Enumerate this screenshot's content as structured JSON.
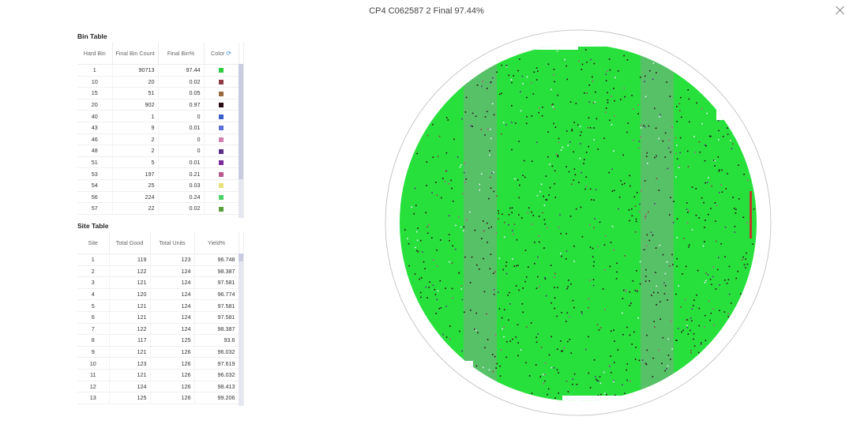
{
  "title": "CP4 C062587 2 Final 97.44%",
  "bin_table": {
    "title": "Bin Table",
    "headers": [
      "Hard Bin",
      "Final Bin Count",
      "Final Bin%",
      "Color"
    ],
    "rows": [
      {
        "bin": "1",
        "count": "90713",
        "pct": "97.44",
        "color": "#2ecc40"
      },
      {
        "bin": "10",
        "count": "20",
        "pct": "0.02",
        "color": "#8e3b46"
      },
      {
        "bin": "15",
        "count": "51",
        "pct": "0.05",
        "color": "#9b6a3e"
      },
      {
        "bin": "20",
        "count": "902",
        "pct": "0.97",
        "color": "#2a0d14"
      },
      {
        "bin": "40",
        "count": "1",
        "pct": "0",
        "color": "#3a5fcd"
      },
      {
        "bin": "43",
        "count": "9",
        "pct": "0.01",
        "color": "#5b6fd6"
      },
      {
        "bin": "46",
        "count": "2",
        "pct": "0",
        "color": "#d17fae"
      },
      {
        "bin": "48",
        "count": "2",
        "pct": "0",
        "color": "#5a2f86"
      },
      {
        "bin": "51",
        "count": "5",
        "pct": "0.01",
        "color": "#7a2a9a"
      },
      {
        "bin": "53",
        "count": "197",
        "pct": "0.21",
        "color": "#b75a8c"
      },
      {
        "bin": "54",
        "count": "25",
        "pct": "0.03",
        "color": "#e8e07a"
      },
      {
        "bin": "56",
        "count": "224",
        "pct": "0.24",
        "color": "#4fd16a"
      },
      {
        "bin": "57",
        "count": "22",
        "pct": "0.02",
        "color": "#5aa03c"
      }
    ]
  },
  "site_table": {
    "title": "Site Table",
    "headers": [
      "Site",
      "Total Good",
      "Total Units",
      "Yield%"
    ],
    "rows": [
      {
        "site": "1",
        "good": "119",
        "units": "123",
        "yield": "96.748"
      },
      {
        "site": "2",
        "good": "122",
        "units": "124",
        "yield": "98.387"
      },
      {
        "site": "3",
        "good": "121",
        "units": "124",
        "yield": "97.581"
      },
      {
        "site": "4",
        "good": "120",
        "units": "124",
        "yield": "96.774"
      },
      {
        "site": "5",
        "good": "121",
        "units": "124",
        "yield": "97.581"
      },
      {
        "site": "6",
        "good": "121",
        "units": "124",
        "yield": "97.581"
      },
      {
        "site": "7",
        "good": "122",
        "units": "124",
        "yield": "98.387"
      },
      {
        "site": "8",
        "good": "117",
        "units": "125",
        "yield": "93.6"
      },
      {
        "site": "9",
        "good": "121",
        "units": "126",
        "yield": "96.032"
      },
      {
        "site": "10",
        "good": "123",
        "units": "126",
        "yield": "97.619"
      },
      {
        "site": "11",
        "good": "121",
        "units": "126",
        "yield": "96.032"
      },
      {
        "site": "12",
        "good": "124",
        "units": "126",
        "yield": "98.413"
      },
      {
        "site": "13",
        "good": "125",
        "units": "126",
        "yield": "99.206"
      }
    ]
  },
  "wafer_map": {
    "good_color": "#27e03c",
    "stripe_color": "#7fa88a",
    "defect_colors": [
      "#2a0d14",
      "#b75a8c",
      "#5a2f86",
      "#e9f0ff",
      "#8e3b46"
    ],
    "edge_color": "#c0392b"
  }
}
